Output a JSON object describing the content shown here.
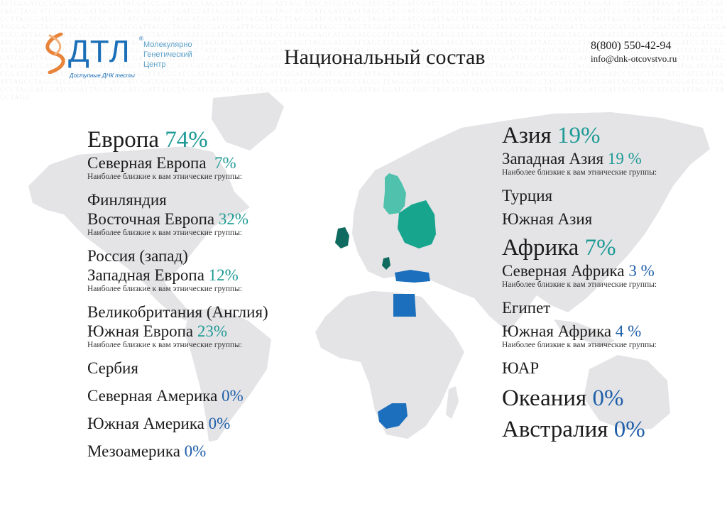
{
  "header": {
    "title": "Национальный состав",
    "phone": "8(800) 550-42-94",
    "email": "info@dnk-otcovstvo.ru"
  },
  "logo": {
    "name": "ДТЛ",
    "line1": "Молекулярно",
    "line2": "Генетический",
    "line3": "Центр",
    "tagline": "Доступные ДНК тесты"
  },
  "hint": "Наиболее близкие к вам этнические группы:",
  "europe": {
    "name": "Европа",
    "pct": "74%",
    "north": {
      "name": "Северная Европа",
      "pct": "7%",
      "group": "Финляндия"
    },
    "east": {
      "name": "Восточная Европа",
      "pct": "32%",
      "group": "Россия (запад)"
    },
    "west": {
      "name": "Западная Европа",
      "pct": "12%",
      "group": "Великобритания (Англия)"
    },
    "south": {
      "name": "Южная Европа",
      "pct": "23%",
      "group": "Сербия"
    }
  },
  "americas": {
    "north": {
      "name": "Северная Америка",
      "pct": "0%"
    },
    "south": {
      "name": "Южная Америка",
      "pct": "0%"
    },
    "meso": {
      "name": "Мезоамерика",
      "pct": "0%"
    }
  },
  "asia": {
    "name": "Азия",
    "pct": "19%",
    "west": {
      "name": "Западная Азия",
      "pct": "19 %",
      "group": "Турция"
    },
    "south": {
      "name": "Южная Азия"
    }
  },
  "africa": {
    "name": "Африка",
    "pct": "7%",
    "north": {
      "name": "Северная Африка",
      "pct": "3 %",
      "group": "Египет"
    },
    "south": {
      "name": "Южная Африка",
      "pct": "4 %",
      "group": "ЮАР"
    }
  },
  "oceania": {
    "name": "Океания",
    "pct": "0%"
  },
  "australia": {
    "name": "Австралия",
    "pct": "0%"
  },
  "colors": {
    "teal": "#1f9a96",
    "blue": "#1f5fa9",
    "map_gray": "#e4e4e6",
    "highlight_light_teal": "#4fc1ac",
    "highlight_dark_teal": "#17a58e",
    "highlight_blue": "#1c6fbd"
  }
}
